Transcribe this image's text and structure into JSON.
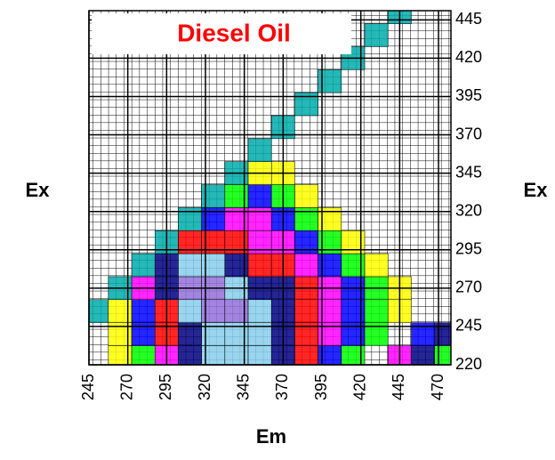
{
  "chart_data": {
    "type": "contour",
    "title": "Diesel Oil",
    "xlabel": "Em",
    "ylabel": "Ex",
    "y2label": "Ex",
    "xlim": [
      245,
      478
    ],
    "ylim": [
      220,
      451
    ],
    "xticks": [
      245,
      270,
      295,
      320,
      345,
      370,
      395,
      420,
      445,
      470
    ],
    "yticks": [
      220,
      245,
      270,
      295,
      320,
      345,
      370,
      395,
      420,
      445
    ],
    "x": [
      250,
      265,
      280,
      295,
      310,
      325,
      340,
      355,
      370,
      385,
      400,
      415,
      430,
      445,
      460,
      475
    ],
    "y": [
      225,
      240,
      255,
      270,
      285,
      300,
      315,
      330,
      345,
      360,
      375,
      390,
      405,
      420,
      435,
      450
    ],
    "colors": [
      "#ffffff",
      "#ffff00",
      "#00ff00",
      "#0000ff",
      "#ff00ff",
      "#ff0000",
      "#000080",
      "#87ceeb",
      "#9370db",
      "#00aaaa"
    ],
    "z": [
      [
        0,
        1,
        2,
        4,
        6,
        7,
        7,
        7,
        6,
        5,
        3,
        2,
        0,
        4,
        6,
        2
      ],
      [
        0,
        1,
        3,
        5,
        6,
        7,
        7,
        7,
        6,
        5,
        4,
        3,
        2,
        0,
        3,
        6
      ],
      [
        9,
        1,
        3,
        5,
        7,
        8,
        8,
        7,
        6,
        5,
        4,
        3,
        2,
        1,
        0,
        0
      ],
      [
        0,
        9,
        4,
        6,
        8,
        8,
        7,
        6,
        6,
        5,
        4,
        3,
        2,
        1,
        0,
        0
      ],
      [
        0,
        0,
        9,
        6,
        7,
        7,
        6,
        5,
        5,
        4,
        3,
        2,
        1,
        0,
        0,
        0
      ],
      [
        0,
        0,
        0,
        9,
        5,
        5,
        5,
        4,
        4,
        3,
        2,
        1,
        0,
        0,
        0,
        0
      ],
      [
        0,
        0,
        0,
        0,
        9,
        3,
        4,
        4,
        3,
        2,
        1,
        0,
        0,
        0,
        0,
        0
      ],
      [
        0,
        0,
        0,
        0,
        0,
        9,
        2,
        3,
        2,
        1,
        0,
        0,
        0,
        0,
        0,
        0
      ],
      [
        0,
        0,
        0,
        0,
        0,
        0,
        9,
        1,
        1,
        0,
        0,
        0,
        0,
        0,
        0,
        0
      ],
      [
        0,
        0,
        0,
        0,
        0,
        0,
        0,
        9,
        0,
        0,
        0,
        0,
        0,
        0,
        0,
        0
      ],
      [
        0,
        0,
        0,
        0,
        0,
        0,
        0,
        0,
        9,
        0,
        0,
        0,
        0,
        0,
        0,
        0
      ],
      [
        0,
        0,
        0,
        0,
        0,
        0,
        0,
        0,
        0,
        9,
        0,
        0,
        0,
        0,
        0,
        0
      ],
      [
        0,
        0,
        0,
        0,
        0,
        0,
        0,
        0,
        0,
        0,
        9,
        0,
        0,
        0,
        0,
        0
      ],
      [
        0,
        0,
        0,
        0,
        0,
        0,
        0,
        0,
        0,
        0,
        0,
        9,
        0,
        0,
        0,
        0
      ],
      [
        0,
        0,
        0,
        0,
        0,
        0,
        0,
        0,
        0,
        0,
        0,
        0,
        9,
        0,
        0,
        0
      ],
      [
        0,
        0,
        0,
        0,
        0,
        0,
        0,
        0,
        0,
        0,
        0,
        0,
        0,
        9,
        0,
        0
      ]
    ]
  }
}
